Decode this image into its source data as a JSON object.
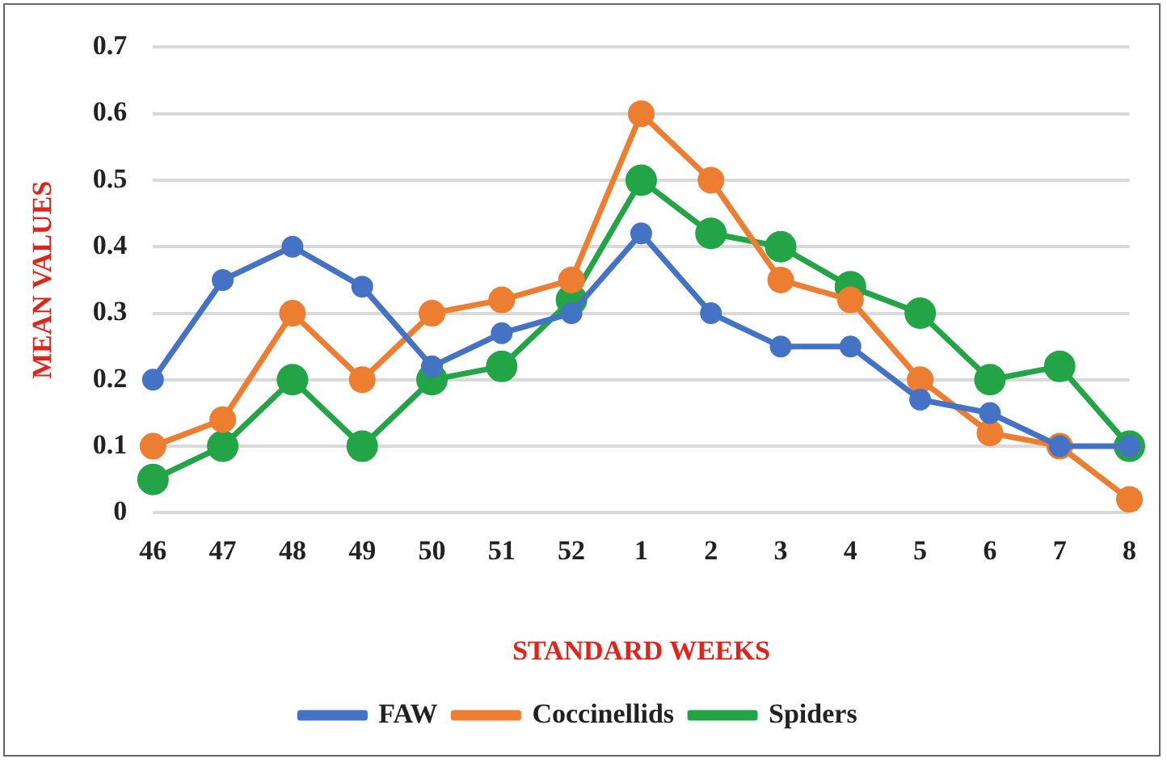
{
  "chart_data": {
    "type": "line",
    "xlabel": "STANDARD WEEKS",
    "ylabel": "MEAN VALUES",
    "categories": [
      "46",
      "47",
      "48",
      "49",
      "50",
      "51",
      "52",
      "1",
      "2",
      "3",
      "4",
      "5",
      "6",
      "7",
      "8"
    ],
    "series": [
      {
        "name": "FAW",
        "color": "#4472c4",
        "values": [
          0.2,
          0.35,
          0.4,
          0.34,
          0.22,
          0.27,
          0.3,
          0.42,
          0.3,
          0.25,
          0.25,
          0.17,
          0.15,
          0.1,
          0.1
        ]
      },
      {
        "name": "Coccinellids",
        "color": "#ed7d31",
        "values": [
          0.1,
          0.14,
          0.3,
          0.2,
          0.3,
          0.32,
          0.35,
          0.6,
          0.5,
          0.35,
          0.32,
          0.2,
          0.12,
          0.1,
          0.02
        ]
      },
      {
        "name": "Spiders",
        "color": "#23a547",
        "values": [
          0.05,
          0.1,
          0.2,
          0.1,
          0.2,
          0.22,
          0.32,
          0.5,
          0.42,
          0.4,
          0.34,
          0.3,
          0.2,
          0.22,
          0.1
        ]
      }
    ],
    "ylim": [
      0,
      0.7
    ],
    "yticks": [
      0,
      0.1,
      0.2,
      0.3,
      0.4,
      0.5,
      0.6,
      0.7
    ],
    "grid": "y",
    "legend": "bottom",
    "marker": "circle",
    "line_style": "solid"
  }
}
